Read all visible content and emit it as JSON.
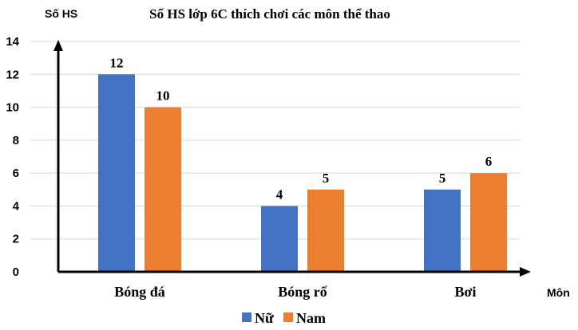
{
  "chart_data": {
    "type": "bar",
    "title": "Số HS lớp 6C thích chơi các môn thể thao",
    "ylabel": "Số HS",
    "xlabel": "Môn",
    "categories": [
      "Bóng đá",
      "Bóng rổ",
      "Bơi"
    ],
    "series": [
      {
        "name": "Nữ",
        "values": [
          12,
          4,
          5
        ],
        "color": "#4472C4"
      },
      {
        "name": "Nam",
        "values": [
          10,
          5,
          6
        ],
        "color": "#ED7D31"
      }
    ],
    "ylim": [
      0,
      14
    ],
    "yticks": [
      0,
      2,
      4,
      6,
      8,
      10,
      12,
      14
    ],
    "grid": true,
    "legend": "bottom",
    "data_labels": true
  }
}
